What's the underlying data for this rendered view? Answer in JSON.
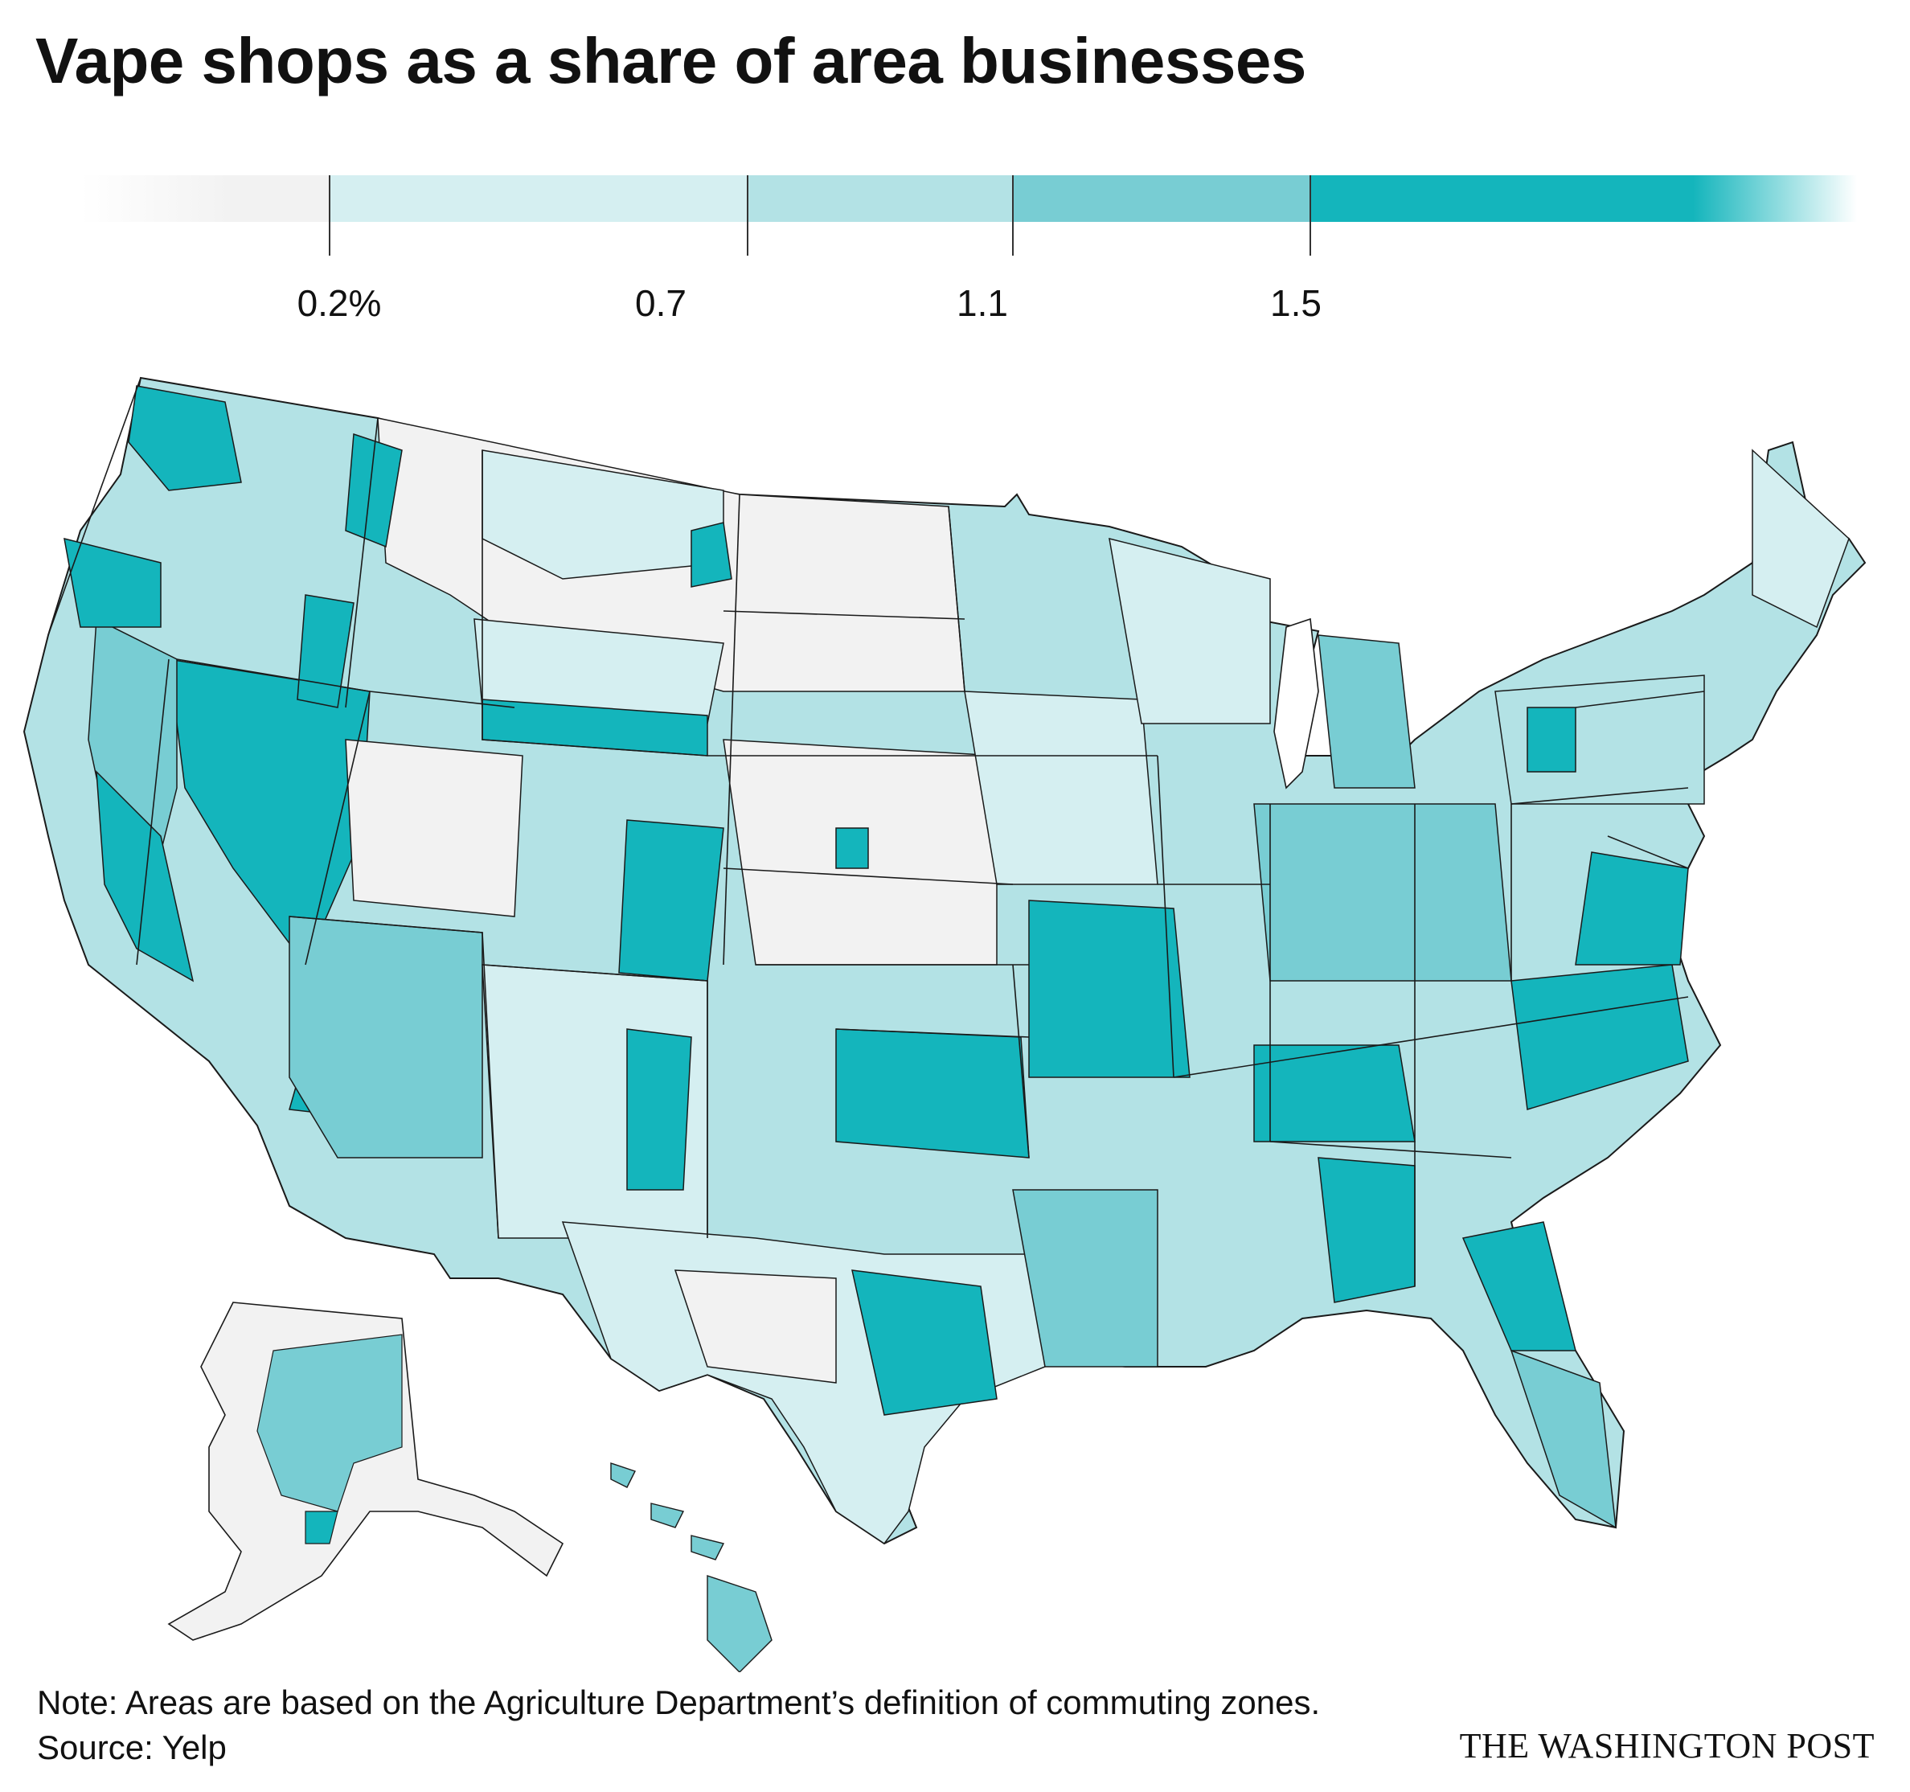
{
  "title": "Vape shops as a share of area businesses",
  "legend": {
    "bins": [
      {
        "label": "",
        "color": "#f2f2f2"
      },
      {
        "label": "0.2%",
        "color": "#d5eff1"
      },
      {
        "label": "0.7",
        "color": "#b3e2e5"
      },
      {
        "label": "1.1",
        "color": "#78cdd3"
      },
      {
        "label": "1.5",
        "color": "#14b5bc"
      }
    ]
  },
  "map": {
    "region": "United States commuting zones",
    "stroke_color": "#1a1a1a"
  },
  "footer": {
    "note": "Note: Areas are based on the Agriculture Department’s definition of commuting zones.",
    "source": "Source: Yelp",
    "brand": "THE WASHINGTON POST"
  }
}
